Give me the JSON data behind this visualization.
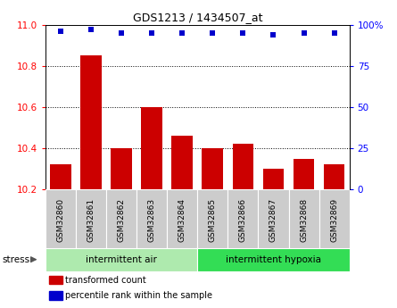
{
  "title": "GDS1213 / 1434507_at",
  "samples": [
    "GSM32860",
    "GSM32861",
    "GSM32862",
    "GSM32863",
    "GSM32864",
    "GSM32865",
    "GSM32866",
    "GSM32867",
    "GSM32868",
    "GSM32869"
  ],
  "bar_values": [
    10.32,
    10.85,
    10.4,
    10.6,
    10.46,
    10.4,
    10.42,
    10.3,
    10.35,
    10.32
  ],
  "percentile_values": [
    96,
    97,
    95,
    95,
    95,
    95,
    95,
    94,
    95,
    95
  ],
  "ylim_left": [
    10.2,
    11.0
  ],
  "ylim_right": [
    0,
    100
  ],
  "yticks_left": [
    10.2,
    10.4,
    10.6,
    10.8,
    11.0
  ],
  "yticks_right": [
    0,
    25,
    50,
    75,
    100
  ],
  "ytick_labels_right": [
    "0",
    "25",
    "50",
    "75",
    "100%"
  ],
  "bar_color": "#cc0000",
  "dot_color": "#0000cc",
  "bar_baseline": 10.2,
  "groups": [
    {
      "label": "intermittent air",
      "start": 0,
      "end": 5,
      "color": "#aeeaae"
    },
    {
      "label": "intermittent hypoxia",
      "start": 5,
      "end": 10,
      "color": "#33dd55"
    }
  ],
  "group_label": "stress",
  "tick_label_bg": "#cccccc",
  "legend_items": [
    {
      "color": "#cc0000",
      "label": "transformed count"
    },
    {
      "color": "#0000cc",
      "label": "percentile rank within the sample"
    }
  ],
  "grid_yvals": [
    10.4,
    10.6,
    10.8
  ],
  "bar_width": 0.7
}
